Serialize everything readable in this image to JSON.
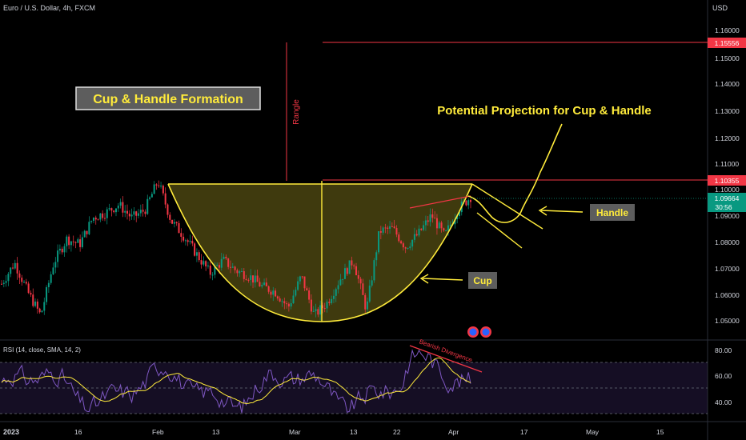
{
  "header": {
    "symbol": "Euro / U.S. Dollar, 4h, FXCM",
    "currency": "USD"
  },
  "chart_data": {
    "type": "candlestick",
    "price_axis": {
      "ticks": [
        "1.16000",
        "1.15000",
        "1.14000",
        "1.13000",
        "1.12000",
        "1.11000",
        "1.10000",
        "1.09000",
        "1.08000",
        "1.07000",
        "1.06000",
        "1.05000"
      ],
      "range": [
        1.045,
        1.165
      ]
    },
    "price_badges": [
      {
        "value": "1.15556",
        "color": "#f23645"
      },
      {
        "value": "1.10355",
        "color": "#f23645"
      },
      {
        "value": "1.09664",
        "countdown": "30:56",
        "color": "#089981"
      }
    ],
    "time_axis": [
      "2023",
      "16",
      "Feb",
      "13",
      "Mar",
      "13",
      "22",
      "Apr",
      "17",
      "May",
      "15"
    ],
    "candles_path": [
      [
        "2023",
        1.064
      ],
      [
        "",
        1.072
      ],
      [
        "",
        1.061
      ],
      [
        "",
        1.052
      ],
      [
        "16",
        1.072
      ],
      [
        "",
        1.081
      ],
      [
        "",
        1.079
      ],
      [
        "",
        1.089
      ],
      [
        "",
        1.091
      ],
      [
        "",
        1.094
      ],
      [
        "",
        1.089
      ],
      [
        "",
        1.092
      ],
      [
        "Feb",
        1.103
      ],
      [
        "",
        1.088
      ],
      [
        "",
        1.082
      ],
      [
        "",
        1.075
      ],
      [
        "13",
        1.068
      ],
      [
        "",
        1.073
      ],
      [
        "",
        1.069
      ],
      [
        "",
        1.067
      ],
      [
        "",
        1.063
      ],
      [
        "",
        1.061
      ],
      [
        "",
        1.055
      ],
      [
        "Mar",
        1.067
      ],
      [
        "",
        1.052
      ],
      [
        "",
        1.057
      ],
      [
        "13",
        1.066
      ],
      [
        "",
        1.073
      ],
      [
        "",
        1.054
      ],
      [
        "22",
        1.084
      ],
      [
        "",
        1.085
      ],
      [
        "",
        1.078
      ],
      [
        "",
        1.083
      ],
      [
        "",
        1.09
      ],
      [
        "Apr",
        1.082
      ],
      [
        "",
        1.092
      ],
      [
        "",
        1.097
      ]
    ],
    "annotations": {
      "title_box": "Cup & Handle Formation",
      "projection": "Potential Projection for Cup & Handle",
      "range_label": "Rangle",
      "handle": "Handle",
      "cup": "Cup"
    },
    "rsi": {
      "label": "RSI (14, close, SMA, 14, 2)",
      "ticks": [
        "80.00",
        "60.00",
        "40.00"
      ],
      "upper_band": 70,
      "lower_band": 30,
      "divergence_label": "Bearish Divergence"
    },
    "colors": {
      "up": "#089981",
      "down": "#f23645",
      "annotation": "#ffeb3b",
      "rsi": "#7e57c2",
      "rsi_ma": "#ffeb3b",
      "cup_fill": "#4a4410"
    }
  }
}
